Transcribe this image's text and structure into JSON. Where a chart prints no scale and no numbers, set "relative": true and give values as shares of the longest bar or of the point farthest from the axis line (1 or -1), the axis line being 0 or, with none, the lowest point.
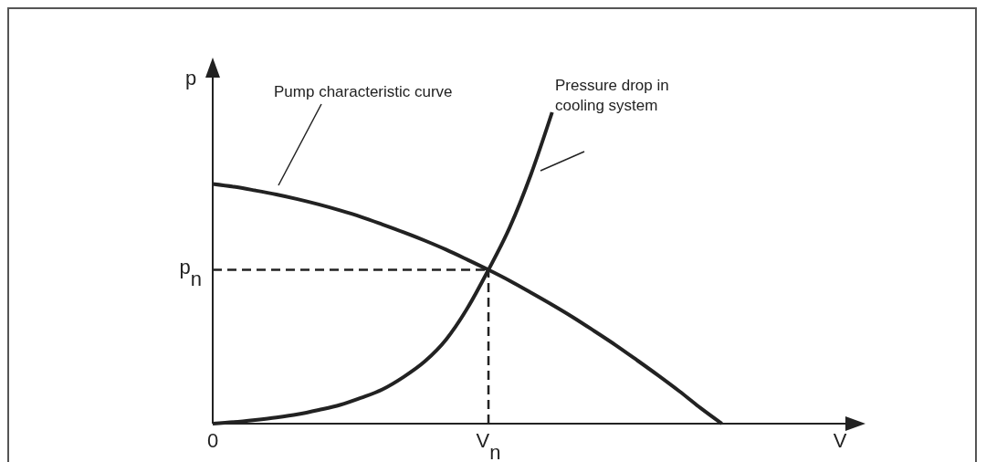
{
  "chart_data": {
    "type": "line",
    "relative": true,
    "xlabel": "V",
    "ylabel": "p",
    "marker": "none",
    "line_style": "solid",
    "categories": [
      "0",
      null,
      null,
      null,
      null,
      null,
      null,
      null,
      null,
      null,
      null,
      null,
      null,
      "V$_{n}$",
      null,
      null,
      null,
      null,
      null,
      null,
      null,
      null,
      null,
      null,
      null,
      null,
      null,
      null,
      null,
      null,
      null
    ],
    "series": [
      {
        "color": "#222222",
        "values": [
          0.77,
          0.761,
          0.749,
          0.736,
          0.721,
          0.704,
          0.685,
          0.664,
          0.64,
          0.615,
          0.588,
          0.559,
          0.527,
          0.494,
          0.459,
          0.421,
          0.382,
          0.341,
          0.297,
          0.252,
          0.204,
          0.155,
          0.104,
          0.05,
          0,
          null,
          null,
          null,
          null,
          null,
          null
        ]
      },
      {
        "color": "#222222",
        "values": [
          0,
          0.005,
          0.012,
          0.02,
          0.03,
          0.044,
          0.06,
          0.083,
          0.11,
          0.15,
          0.2,
          0.27,
          0.37,
          0.494,
          0.63,
          0.8,
          1,
          null,
          null,
          null,
          null,
          null,
          null,
          null,
          null,
          null,
          null,
          null,
          null,
          null,
          null
        ]
      }
    ],
    "ref_lines": [
      {
        "axis": "y",
        "value": 0.494,
        "label": "p$_{n}$",
        "line_style": "dashed",
        "color": "#222222"
      },
      {
        "axis": "x",
        "value": "V$_{n}$",
        "line_style": "dashed",
        "color": "#222222"
      }
    ],
    "annotations": [
      "Pump characteristic curve",
      "Pressure drop in cooling system"
    ]
  }
}
